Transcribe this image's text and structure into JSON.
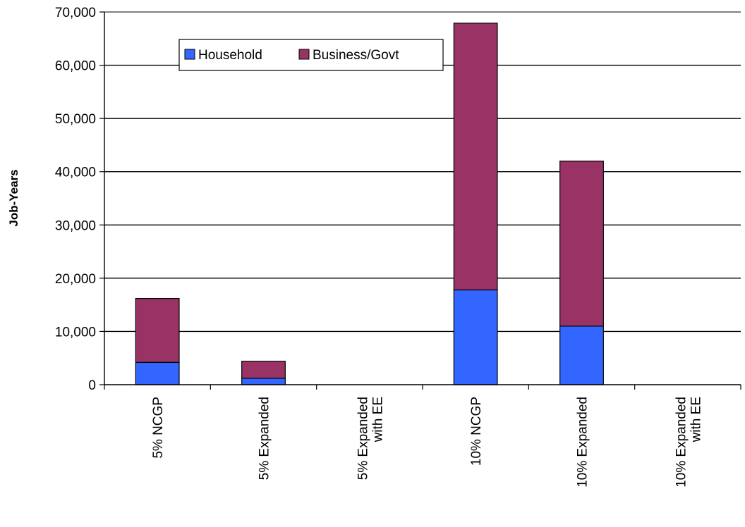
{
  "chart_data": {
    "type": "bar",
    "stacked": true,
    "title": "",
    "xlabel": "",
    "ylabel": "Job-Years",
    "ylim": [
      0,
      70000
    ],
    "yticks": [
      0,
      10000,
      20000,
      30000,
      40000,
      50000,
      60000,
      70000
    ],
    "ytick_labels": [
      "0",
      "10,000",
      "20,000",
      "30,000",
      "40,000",
      "50,000",
      "60,000",
      "70,000"
    ],
    "grid": "horizontal",
    "legend_position": "top-left",
    "categories": [
      [
        "5% NCGP"
      ],
      [
        "5% Expanded"
      ],
      [
        "5% Expanded",
        "with EE"
      ],
      [
        "10% NCGP"
      ],
      [
        "10% Expanded"
      ],
      [
        "10% Expanded",
        "with EE"
      ]
    ],
    "series": [
      {
        "name": "Household",
        "color": "#3366ff",
        "values": [
          4200,
          1200,
          0,
          17800,
          11000,
          0
        ]
      },
      {
        "name": "Business/Govt",
        "color": "#993366",
        "values": [
          12000,
          3200,
          0,
          50100,
          31000,
          0
        ]
      }
    ]
  }
}
